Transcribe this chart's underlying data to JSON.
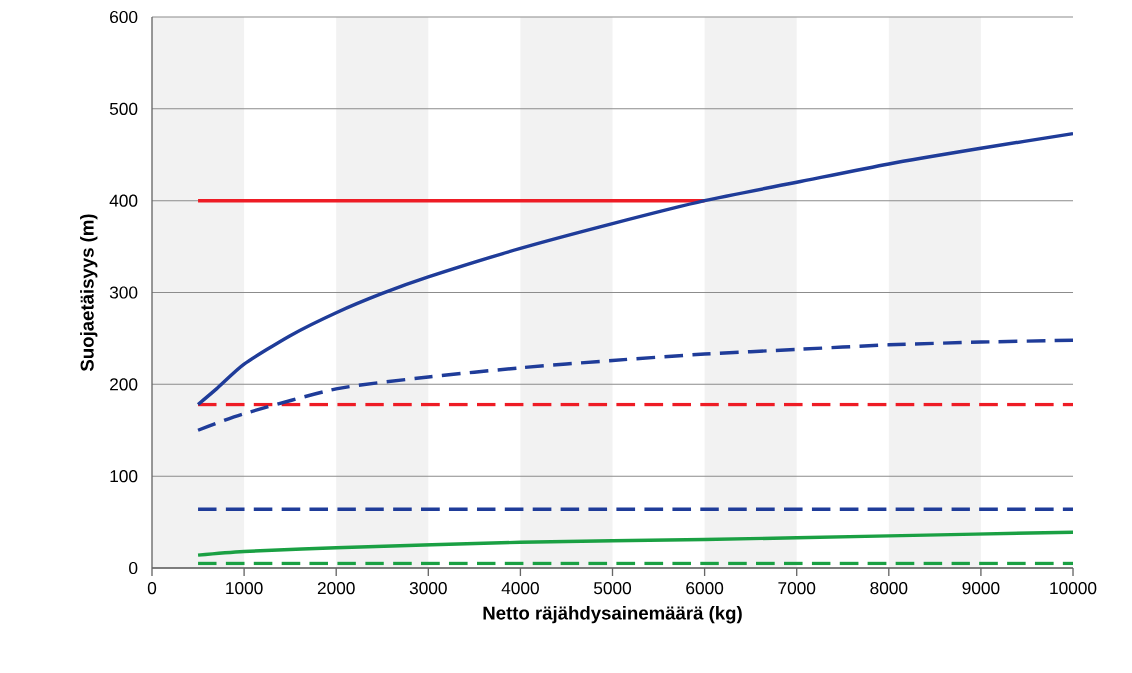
{
  "chart_data": {
    "type": "line",
    "xlabel": "Netto räjähdysainemäärä (kg)",
    "ylabel": "Suojaetäisyys (m)",
    "xlim": [
      0,
      10000
    ],
    "ylim": [
      0,
      600
    ],
    "xticks": [
      0,
      1000,
      2000,
      3000,
      4000,
      5000,
      6000,
      7000,
      8000,
      9000,
      10000
    ],
    "yticks": [
      0,
      100,
      200,
      300,
      400,
      500,
      600
    ],
    "grid": "y",
    "bands": [
      {
        "axis": "x",
        "from": 0,
        "to": 1000,
        "color": "#f2f2f2"
      },
      {
        "axis": "x",
        "from": 2000,
        "to": 3000,
        "color": "#f2f2f2"
      },
      {
        "axis": "x",
        "from": 4000,
        "to": 5000,
        "color": "#f2f2f2"
      },
      {
        "axis": "x",
        "from": 6000,
        "to": 7000,
        "color": "#f2f2f2"
      },
      {
        "axis": "x",
        "from": 8000,
        "to": 9000,
        "color": "#f2f2f2"
      }
    ],
    "series": [
      {
        "color": "#ee1c25",
        "line_style": "solid",
        "x": [
          500,
          6000
        ],
        "values": [
          400,
          400
        ]
      },
      {
        "color": "#ee1c25",
        "line_style": "dashed",
        "x": [
          500,
          10000
        ],
        "values": [
          178,
          178
        ]
      },
      {
        "color": "#1f3c99",
        "line_style": "dashed",
        "x": [
          500,
          10000
        ],
        "values": [
          64,
          64
        ]
      },
      {
        "color": "#1aa043",
        "line_style": "dashed",
        "x": [
          500,
          10000
        ],
        "values": [
          5,
          5
        ]
      },
      {
        "color": "#1aa043",
        "line_style": "solid",
        "x": [
          500,
          1000,
          2000,
          4000,
          6000,
          8000,
          10000
        ],
        "values": [
          14,
          18,
          22,
          28,
          31,
          35,
          39
        ]
      },
      {
        "color": "#1f3c99",
        "line_style": "dashed",
        "x": [
          500,
          1000,
          2000,
          3000,
          4000,
          5000,
          6000,
          7000,
          8000,
          9000,
          10000
        ],
        "values": [
          150,
          168,
          195,
          208,
          218,
          226,
          233,
          238,
          243,
          246,
          248
        ]
      },
      {
        "color": "#1f3c99",
        "line_style": "solid",
        "x": [
          500,
          700,
          1000,
          1500,
          2000,
          2500,
          3000,
          4000,
          5000,
          6000,
          7000,
          8000,
          9000,
          10000
        ],
        "values": [
          178,
          195,
          222,
          253,
          278,
          299,
          317,
          348,
          375,
          400,
          420,
          440,
          457,
          473
        ]
      }
    ]
  }
}
